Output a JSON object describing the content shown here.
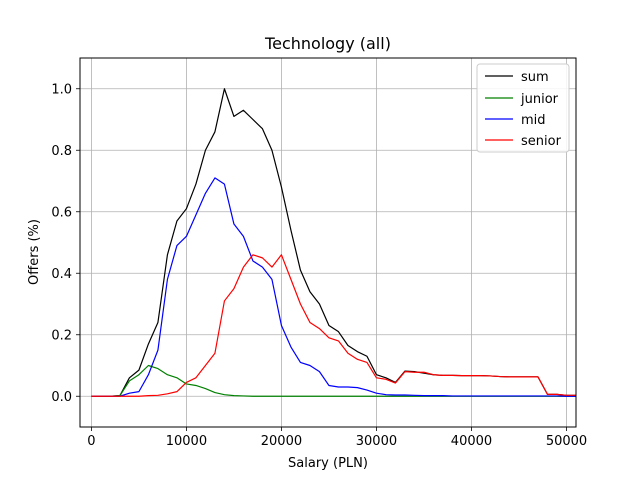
{
  "chart_data": {
    "type": "line",
    "title": "Technology (all)",
    "xlabel": "Salary (PLN)",
    "ylabel": "Offers (%)",
    "xlim": [
      -1200,
      51000
    ],
    "ylim": [
      -0.1,
      1.1
    ],
    "xticks": [
      0,
      10000,
      20000,
      30000,
      40000,
      50000
    ],
    "xtick_labels": [
      "0",
      "10000",
      "20000",
      "30000",
      "40000",
      "50000"
    ],
    "yticks": [
      0.0,
      0.2,
      0.4,
      0.6,
      0.8,
      1.0
    ],
    "ytick_labels": [
      "0.0",
      "0.2",
      "0.4",
      "0.6",
      "0.8",
      "1.0"
    ],
    "grid": true,
    "legend_position": "top-right",
    "x": [
      0,
      1000,
      2000,
      3000,
      4000,
      5000,
      6000,
      7000,
      8000,
      9000,
      10000,
      11000,
      12000,
      13000,
      14000,
      15000,
      16000,
      17000,
      18000,
      19000,
      20000,
      21000,
      22000,
      23000,
      24000,
      25000,
      26000,
      27000,
      28000,
      29000,
      30000,
      31000,
      32000,
      33000,
      34000,
      35000,
      36000,
      37000,
      38000,
      39000,
      40000,
      41000,
      42000,
      43000,
      44000,
      45000,
      46000,
      47000,
      48000,
      49000,
      50000,
      51000
    ],
    "series": [
      {
        "name": "sum",
        "color": "#000000",
        "values": [
          0,
          0,
          0,
          0.002,
          0.06,
          0.085,
          0.17,
          0.24,
          0.46,
          0.57,
          0.61,
          0.69,
          0.8,
          0.86,
          1.0,
          0.91,
          0.93,
          0.9,
          0.87,
          0.8,
          0.68,
          0.54,
          0.41,
          0.34,
          0.3,
          0.23,
          0.21,
          0.165,
          0.145,
          0.13,
          0.07,
          0.06,
          0.045,
          0.082,
          0.08,
          0.075,
          0.07,
          0.068,
          0.068,
          0.067,
          0.067,
          0.067,
          0.066,
          0.064,
          0.063,
          0.063,
          0.063,
          0.063,
          0.006,
          0.006,
          0.003,
          0.003
        ]
      },
      {
        "name": "junior",
        "color": "#008000",
        "values": [
          0,
          0,
          0,
          0.002,
          0.05,
          0.07,
          0.1,
          0.09,
          0.07,
          0.06,
          0.04,
          0.035,
          0.025,
          0.012,
          0.005,
          0.002,
          0.001,
          0,
          0,
          0,
          0,
          0,
          0,
          0,
          0,
          0,
          0,
          0,
          0,
          0,
          0,
          0,
          0,
          0,
          0,
          0,
          0,
          0,
          0,
          0,
          0,
          0,
          0,
          0,
          0,
          0,
          0,
          0,
          0,
          0,
          0,
          0
        ]
      },
      {
        "name": "mid",
        "color": "#0000ff",
        "values": [
          0,
          0,
          0,
          0,
          0.01,
          0.015,
          0.07,
          0.15,
          0.38,
          0.49,
          0.52,
          0.59,
          0.66,
          0.71,
          0.69,
          0.56,
          0.52,
          0.44,
          0.42,
          0.38,
          0.23,
          0.16,
          0.11,
          0.1,
          0.08,
          0.035,
          0.03,
          0.03,
          0.028,
          0.02,
          0.01,
          0.005,
          0.004,
          0.004,
          0.003,
          0.002,
          0.002,
          0.002,
          0.001,
          0.001,
          0.001,
          0.001,
          0.001,
          0.001,
          0.001,
          0.001,
          0.001,
          0.001,
          0.001,
          0.001,
          0,
          0
        ]
      },
      {
        "name": "senior",
        "color": "#ff0000",
        "values": [
          0,
          0,
          0,
          0,
          0,
          0,
          0.002,
          0.003,
          0.008,
          0.015,
          0.045,
          0.06,
          0.1,
          0.14,
          0.31,
          0.35,
          0.42,
          0.46,
          0.45,
          0.42,
          0.46,
          0.38,
          0.3,
          0.24,
          0.22,
          0.19,
          0.18,
          0.14,
          0.12,
          0.11,
          0.06,
          0.055,
          0.043,
          0.08,
          0.078,
          0.078,
          0.07,
          0.068,
          0.068,
          0.067,
          0.067,
          0.067,
          0.066,
          0.064,
          0.063,
          0.063,
          0.063,
          0.063,
          0.006,
          0.006,
          0.003,
          0.003
        ]
      }
    ]
  }
}
